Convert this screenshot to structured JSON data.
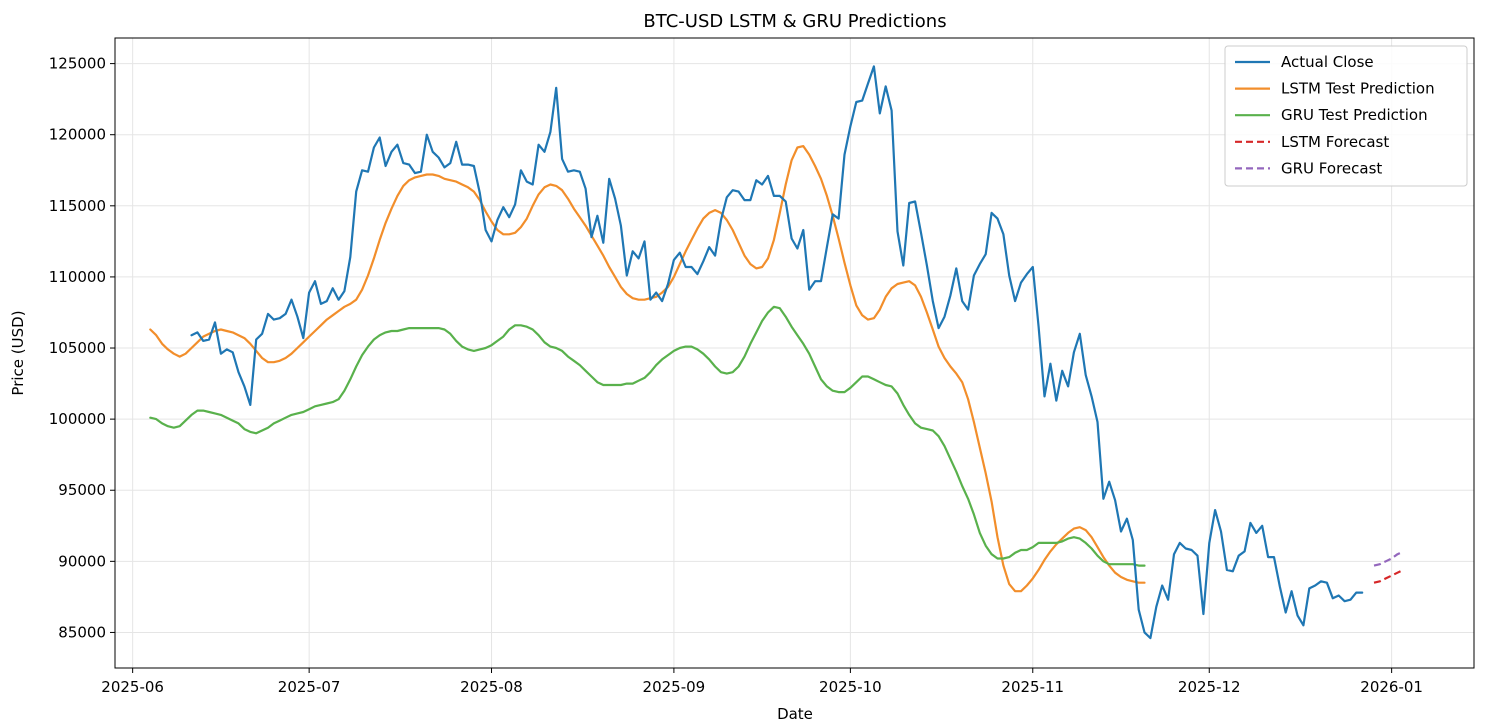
{
  "chart_data": {
    "type": "line",
    "title": "BTC-USD LSTM & GRU Predictions",
    "xlabel": "Date",
    "ylabel": "Price (USD)",
    "xlim": [
      "2025-05-29",
      "2026-01-15"
    ],
    "ylim": [
      82500,
      126800
    ],
    "x_ticks": [
      "2025-06-01",
      "2025-07-01",
      "2025-08-01",
      "2025-09-01",
      "2025-10-01",
      "2025-11-01",
      "2025-12-01",
      "2026-01-01"
    ],
    "x_tick_labels": [
      "2025-06",
      "2025-07",
      "2025-08",
      "2025-09",
      "2025-10",
      "2025-11",
      "2025-12",
      "2026-01"
    ],
    "y_ticks": [
      85000,
      90000,
      95000,
      100000,
      105000,
      110000,
      115000,
      120000,
      125000
    ],
    "y_tick_labels": [
      "85000",
      "90000",
      "95000",
      "100000",
      "105000",
      "110000",
      "115000",
      "120000",
      "125000"
    ],
    "grid": true,
    "legend_position": "top-right",
    "series": [
      {
        "name": "Actual Close",
        "color": "#1f77b4",
        "dash": "solid",
        "start": "2025-06-11",
        "values": [
          105900,
          106100,
          105500,
          105600,
          106800,
          104600,
          104900,
          104700,
          103300,
          102300,
          101000,
          105600,
          106000,
          107400,
          107000,
          107100,
          107400,
          108400,
          107200,
          105700,
          108900,
          109700,
          108100,
          108300,
          109200,
          108400,
          109000,
          111400,
          116000,
          117500,
          117400,
          119100,
          119800,
          117800,
          118800,
          119300,
          118000,
          117900,
          117300,
          117400,
          120000,
          118800,
          118400,
          117700,
          118000,
          119500,
          117900,
          117900,
          117800,
          115900,
          113300,
          112500,
          114000,
          114900,
          114200,
          115100,
          117500,
          116700,
          116500,
          119300,
          118800,
          120200,
          123300,
          118300,
          117400,
          117500,
          117400,
          116200,
          112800,
          114300,
          112400,
          116900,
          115500,
          113600,
          110100,
          111800,
          111300,
          112500,
          108400,
          108900,
          108300,
          109500,
          111200,
          111700,
          110700,
          110700,
          110200,
          111100,
          112100,
          111500,
          114000,
          115600,
          116100,
          116000,
          115400,
          115400,
          116800,
          116500,
          117100,
          115700,
          115700,
          115300,
          112700,
          112000,
          113300,
          109100,
          109700,
          109700,
          112100,
          114400,
          114100,
          118600,
          120600,
          122300,
          122400,
          123600,
          124800,
          121500,
          123400,
          121700,
          113200,
          110800,
          115200,
          115300,
          113100,
          110800,
          108300,
          106400,
          107200,
          108700,
          110600,
          108300,
          107700,
          110100,
          110900,
          111600,
          114500,
          114100,
          113000,
          110100,
          108300,
          109600,
          110200,
          110700,
          106500,
          101600,
          103900,
          101300,
          103400,
          102300,
          104700,
          106000,
          103100,
          101600,
          99800,
          94400,
          95600,
          94300,
          92100,
          93000,
          91500,
          86600,
          85000,
          84600,
          86800,
          88300,
          87300,
          90500,
          91300,
          90900,
          90800,
          90400,
          86300,
          91300,
          93600,
          92100,
          89400,
          89300,
          90400,
          90700,
          92700,
          92000,
          92500,
          90300,
          90300,
          88200,
          86400,
          87900,
          86200,
          85500,
          88100,
          88300,
          88600,
          88500,
          87400,
          87600,
          87200,
          87300,
          87800,
          87800
        ]
      },
      {
        "name": "LSTM Test Prediction",
        "color": "#f28e2b",
        "dash": "solid",
        "start": "2025-06-04",
        "values": [
          106300,
          105900,
          105300,
          104900,
          104600,
          104400,
          104600,
          105000,
          105400,
          105800,
          106000,
          106200,
          106300,
          106200,
          106100,
          105900,
          105700,
          105300,
          104800,
          104300,
          104000,
          104000,
          104100,
          104300,
          104600,
          105000,
          105400,
          105800,
          106200,
          106600,
          107000,
          107300,
          107600,
          107900,
          108100,
          108400,
          109100,
          110100,
          111300,
          112600,
          113800,
          114800,
          115700,
          116400,
          116800,
          117000,
          117100,
          117200,
          117200,
          117100,
          116900,
          116800,
          116700,
          116500,
          116300,
          116000,
          115400,
          114600,
          113900,
          113300,
          113000,
          113000,
          113100,
          113500,
          114100,
          115000,
          115800,
          116300,
          116500,
          116400,
          116100,
          115500,
          114800,
          114200,
          113600,
          112900,
          112200,
          111500,
          110700,
          110000,
          109300,
          108800,
          108500,
          108400,
          108400,
          108500,
          108600,
          108900,
          109300,
          110000,
          110900,
          111800,
          112600,
          113400,
          114100,
          114500,
          114700,
          114500,
          114000,
          113300,
          112400,
          111500,
          110900,
          110600,
          110700,
          111300,
          112600,
          114500,
          116500,
          118200,
          119100,
          119200,
          118600,
          117800,
          116900,
          115700,
          114300,
          112700,
          111000,
          109400,
          108000,
          107300,
          107000,
          107100,
          107700,
          108600,
          109200,
          109500,
          109600,
          109700,
          109400,
          108600,
          107500,
          106300,
          105100,
          104300,
          103700,
          103200,
          102600,
          101400,
          99800,
          98000,
          96200,
          94200,
          91700,
          89700,
          88400,
          87900,
          87900,
          88300,
          88800,
          89400,
          90100,
          90700,
          91200,
          91600,
          92000,
          92300,
          92400,
          92200,
          91700,
          91000,
          90300,
          89700,
          89200,
          88900,
          88700,
          88600,
          88500,
          88500
        ]
      },
      {
        "name": "GRU Test Prediction",
        "color": "#59b14c",
        "dash": "solid",
        "start": "2025-06-04",
        "values": [
          100100,
          100000,
          99700,
          99500,
          99400,
          99500,
          99900,
          100300,
          100600,
          100600,
          100500,
          100400,
          100300,
          100100,
          99900,
          99700,
          99300,
          99100,
          99000,
          99200,
          99400,
          99700,
          99900,
          100100,
          100300,
          100400,
          100500,
          100700,
          100900,
          101000,
          101100,
          101200,
          101400,
          102000,
          102800,
          103700,
          104500,
          105100,
          105600,
          105900,
          106100,
          106200,
          106200,
          106300,
          106400,
          106400,
          106400,
          106400,
          106400,
          106400,
          106300,
          106000,
          105500,
          105100,
          104900,
          104800,
          104900,
          105000,
          105200,
          105500,
          105800,
          106300,
          106600,
          106600,
          106500,
          106300,
          105900,
          105400,
          105100,
          105000,
          104800,
          104400,
          104100,
          103800,
          103400,
          103000,
          102600,
          102400,
          102400,
          102400,
          102400,
          102500,
          102500,
          102700,
          102900,
          103300,
          103800,
          104200,
          104500,
          104800,
          105000,
          105100,
          105100,
          104900,
          104600,
          104200,
          103700,
          103300,
          103200,
          103300,
          103700,
          104400,
          105300,
          106100,
          106900,
          107500,
          107900,
          107800,
          107200,
          106500,
          105900,
          105300,
          104600,
          103700,
          102800,
          102300,
          102000,
          101900,
          101900,
          102200,
          102600,
          103000,
          103000,
          102800,
          102600,
          102400,
          102300,
          101800,
          101000,
          100300,
          99700,
          99400,
          99300,
          99200,
          98800,
          98100,
          97200,
          96300,
          95300,
          94400,
          93300,
          92000,
          91100,
          90500,
          90200,
          90200,
          90300,
          90600,
          90800,
          90800,
          91000,
          91300,
          91300,
          91300,
          91300,
          91400,
          91600,
          91700,
          91600,
          91300,
          90900,
          90400,
          90000,
          89800,
          89800,
          89800,
          89800,
          89800,
          89700,
          89700
        ]
      },
      {
        "name": "LSTM Forecast",
        "color": "#d62728",
        "dash": "dashed",
        "start": "2025-12-29",
        "values": [
          88500,
          88600,
          88800,
          89000,
          89200,
          89400
        ]
      },
      {
        "name": "GRU Forecast",
        "color": "#9467bd",
        "dash": "dashed",
        "start": "2025-12-29",
        "values": [
          89700,
          89800,
          90000,
          90200,
          90500,
          90700
        ]
      }
    ]
  }
}
